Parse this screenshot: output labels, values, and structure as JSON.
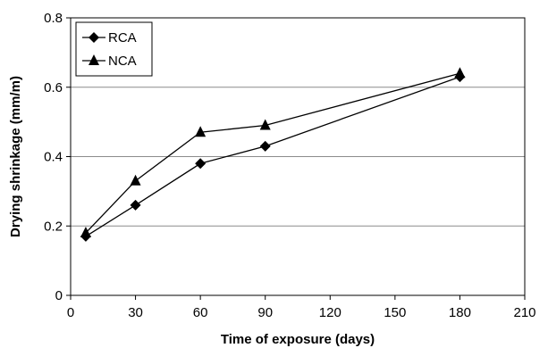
{
  "chart_data": {
    "type": "line",
    "xlabel": "Time of exposure (days)",
    "ylabel": "Drying shrinkage (mm/m)",
    "xlim": [
      0,
      210
    ],
    "ylim": [
      0,
      0.8
    ],
    "x_ticks": [
      0,
      30,
      60,
      90,
      120,
      150,
      180,
      210
    ],
    "y_ticks": [
      0,
      0.2,
      0.4,
      0.6,
      0.8
    ],
    "x_tick_labels": [
      "0",
      "30",
      "60",
      "90",
      "120",
      "150",
      "180",
      "210"
    ],
    "y_tick_labels": [
      "0",
      "0.2",
      "0.4",
      "0.6",
      "0.8"
    ],
    "grid": "horizontal",
    "legend_position": "top-left",
    "series": [
      {
        "name": "RCA",
        "marker": "diamond",
        "color": "#000000",
        "x": [
          7,
          30,
          60,
          90,
          180
        ],
        "y": [
          0.17,
          0.26,
          0.38,
          0.43,
          0.63
        ]
      },
      {
        "name": "NCA",
        "marker": "triangle",
        "color": "#000000",
        "x": [
          7,
          30,
          60,
          90,
          180
        ],
        "y": [
          0.18,
          0.33,
          0.47,
          0.49,
          0.64
        ]
      }
    ]
  }
}
